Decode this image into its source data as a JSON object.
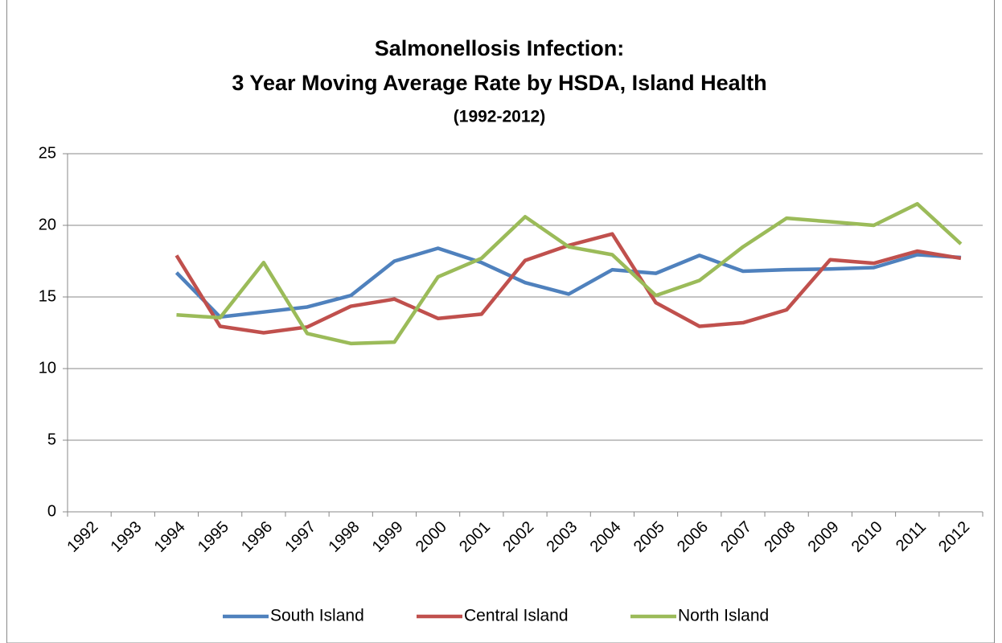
{
  "chart_data": {
    "type": "line",
    "title": [
      "Salmonellosis Infection:",
      "3 Year Moving Average Rate by HSDA, Island Health"
    ],
    "subtitle": "(1992-2012)",
    "categories": [
      "1992",
      "1993",
      "1994",
      "1995",
      "1996",
      "1997",
      "1998",
      "1999",
      "2000",
      "2001",
      "2002",
      "2003",
      "2004",
      "2005",
      "2006",
      "2007",
      "2008",
      "2009",
      "2010",
      "2011",
      "2012"
    ],
    "series": [
      {
        "name": "South Island",
        "color": "#4f81bd",
        "values": [
          null,
          null,
          16.7,
          13.6,
          13.95,
          14.3,
          15.1,
          17.5,
          18.4,
          17.4,
          16.0,
          15.2,
          16.9,
          16.65,
          17.9,
          16.8,
          16.9,
          16.95,
          17.05,
          17.95,
          17.75
        ]
      },
      {
        "name": "Central Island",
        "color": "#c0504d",
        "values": [
          null,
          null,
          17.9,
          12.95,
          12.5,
          12.9,
          14.35,
          14.85,
          13.5,
          13.8,
          17.55,
          18.6,
          19.4,
          14.6,
          12.95,
          13.2,
          14.1,
          17.6,
          17.35,
          18.2,
          17.7
        ]
      },
      {
        "name": "North Island",
        "color": "#9bbb59",
        "values": [
          null,
          null,
          13.75,
          13.55,
          17.4,
          12.45,
          11.75,
          11.85,
          16.4,
          17.7,
          20.6,
          18.5,
          17.95,
          15.1,
          16.15,
          18.5,
          20.5,
          20.25,
          20.0,
          21.5,
          18.7
        ]
      }
    ],
    "ylim": [
      0,
      25
    ],
    "yticks": [
      0,
      5,
      10,
      15,
      20,
      25
    ],
    "grid": true,
    "legend": "bottom"
  }
}
